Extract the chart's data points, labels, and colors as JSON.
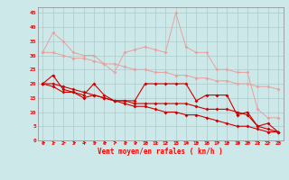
{
  "x": [
    0,
    1,
    2,
    3,
    4,
    5,
    6,
    7,
    8,
    9,
    10,
    11,
    12,
    13,
    14,
    15,
    16,
    17,
    18,
    19,
    20,
    21,
    22,
    23
  ],
  "line1": [
    31,
    38,
    35,
    31,
    30,
    30,
    27,
    24,
    31,
    32,
    33,
    32,
    31,
    45,
    33,
    31,
    31,
    25,
    25,
    24,
    24,
    11,
    8,
    8
  ],
  "line2": [
    31,
    31,
    30,
    29,
    29,
    28,
    27,
    27,
    26,
    25,
    25,
    24,
    24,
    23,
    23,
    22,
    22,
    21,
    21,
    20,
    20,
    19,
    19,
    18
  ],
  "line3": [
    20,
    23,
    18,
    17,
    16,
    20,
    16,
    14,
    14,
    14,
    20,
    20,
    20,
    20,
    20,
    14,
    16,
    16,
    16,
    9,
    10,
    5,
    6,
    3
  ],
  "line4": [
    20,
    19,
    17,
    17,
    15,
    16,
    15,
    14,
    14,
    13,
    13,
    13,
    13,
    13,
    13,
    12,
    11,
    11,
    11,
    10,
    9,
    5,
    4,
    3
  ],
  "line5": [
    20,
    20,
    19,
    18,
    17,
    16,
    15,
    14,
    13,
    12,
    12,
    11,
    10,
    10,
    9,
    9,
    8,
    7,
    6,
    5,
    5,
    4,
    3,
    3
  ],
  "color_light": "#e8a0a0",
  "color_dark": "#cc0000",
  "bg_color": "#cce8e8",
  "grid_color": "#aacccc",
  "xlabel": "Vent moyen/en rafales ( kn/h )",
  "yticks": [
    0,
    5,
    10,
    15,
    20,
    25,
    30,
    35,
    40,
    45
  ],
  "marker": "D",
  "lw_light": 0.7,
  "lw_dark": 0.8,
  "ms": 2.0
}
